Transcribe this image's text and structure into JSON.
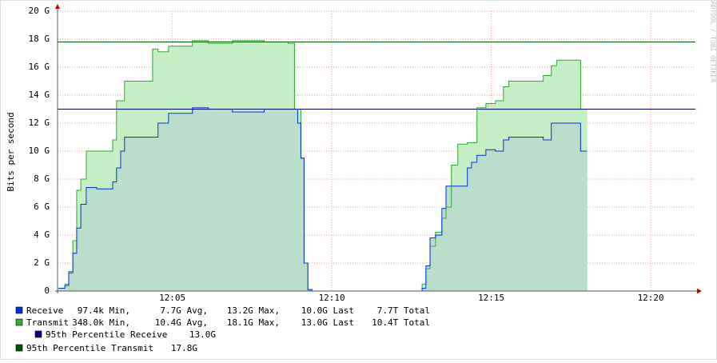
{
  "chart_data": {
    "type": "step-area",
    "y_label": "Bits per second",
    "watermark": "RRDTOOL / TOBI OETIKER",
    "x": [
      1.43,
      1.63,
      1.75,
      1.88,
      2.0,
      2.13,
      2.3,
      2.63,
      3.13,
      3.25,
      3.38,
      3.5,
      4.38,
      4.55,
      4.88,
      5.63,
      6.13,
      6.88,
      7.88,
      8.63,
      8.83,
      8.93,
      9.03,
      9.13,
      9.25,
      9.38,
      12.83,
      12.95,
      13.08,
      13.25,
      13.45,
      13.58,
      13.75,
      13.95,
      14.25,
      14.38,
      14.55,
      14.83,
      15.13,
      15.38,
      15.55,
      16.13,
      16.63,
      16.88,
      17.05,
      17.8,
      18.0
    ],
    "series": [
      {
        "name": "Transmit",
        "color": "#33aa33",
        "fill": "#c4eec4",
        "values": [
          0.2,
          0.5,
          1.4,
          3.6,
          7.2,
          8,
          10,
          10,
          10.8,
          13.6,
          13.6,
          15,
          17.3,
          17.1,
          17.5,
          17.9,
          17.7,
          17.9,
          17.8,
          17.7,
          13,
          13,
          9.5,
          2,
          0.1,
          0,
          0.5,
          1.6,
          3.2,
          4.2,
          5.2,
          6,
          9,
          10.5,
          10.6,
          10.6,
          13.1,
          13.4,
          13.6,
          14.6,
          15,
          15,
          15.4,
          16.1,
          16.5,
          13,
          13
        ],
        "legend_stats": [
          "348.0k Min,",
          "10.4G Avg,",
          "18.1G Max,",
          "13.0G Last",
          "10.4T Total"
        ]
      },
      {
        "name": "Receive",
        "color": "#0033dd",
        "fill": "#b9decb",
        "values": [
          0.2,
          0.4,
          1.3,
          2.7,
          4.5,
          6.2,
          7.4,
          7.3,
          7.8,
          8.8,
          10,
          11,
          11,
          12,
          12.7,
          13.1,
          13,
          12.8,
          13,
          13,
          13,
          12,
          9.5,
          2,
          0.1,
          0,
          0.2,
          1.8,
          3.8,
          4,
          5.9,
          7.5,
          7.5,
          7.5,
          8.8,
          9.2,
          9.7,
          10.1,
          10,
          10.8,
          11,
          11,
          10.8,
          12,
          12,
          10,
          10
        ],
        "legend_stats": [
          "97.4k Min,",
          "7.7G Avg,",
          "13.2G Max,",
          "10.0G Last",
          "7.7T Total"
        ]
      }
    ],
    "percentiles": [
      {
        "name": "95th Percentile Receive",
        "value": 13.0,
        "value_label": "13.0G",
        "color": "#000088"
      },
      {
        "name": "95th Percentile Transmit",
        "value": 17.8,
        "value_label": "17.8G",
        "color": "#005500"
      }
    ],
    "xlim": [
      1.4,
      21.4
    ],
    "xticks": [
      {
        "value": 5,
        "label": "12:05"
      },
      {
        "value": 10,
        "label": "12:10"
      },
      {
        "value": 15,
        "label": "12:15"
      },
      {
        "value": 20,
        "label": "12:20"
      }
    ],
    "ylim": [
      0,
      20
    ],
    "yticks": [
      {
        "value": 0,
        "label": "0"
      },
      {
        "value": 2,
        "label": "2 G"
      },
      {
        "value": 4,
        "label": "4 G"
      },
      {
        "value": 6,
        "label": "6 G"
      },
      {
        "value": 8,
        "label": "8 G"
      },
      {
        "value": 10,
        "label": "10 G"
      },
      {
        "value": 12,
        "label": "12 G"
      },
      {
        "value": 14,
        "label": "14 G"
      },
      {
        "value": 16,
        "label": "16 G"
      },
      {
        "value": 18,
        "label": "18 G"
      },
      {
        "value": 20,
        "label": "20 G"
      }
    ],
    "grid": true
  }
}
